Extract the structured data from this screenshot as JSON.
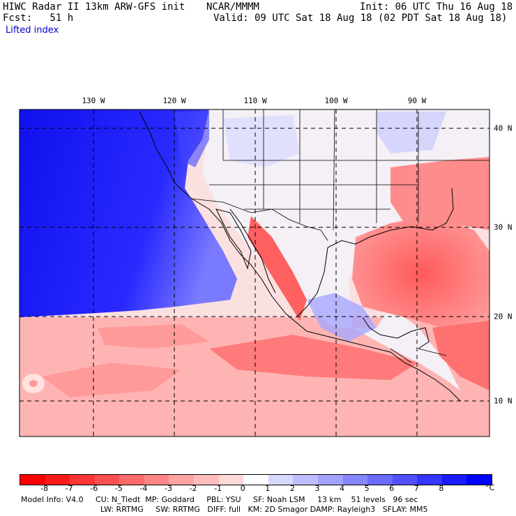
{
  "header": {
    "title": "HIWC Radar II 13km ARW-GFS init",
    "org": "NCAR/MMMM",
    "init": "Init: 06 UTC Thu 16 Aug 18",
    "fcst": "Fcst:   51 h",
    "valid": "Valid: 09 UTC Sat 18 Aug 18 (02 PDT Sat 18 Aug 18)",
    "field": "Lifted index"
  },
  "map": {
    "longitude_labels": [
      "130 W",
      "120 W",
      "110 W",
      "100 W",
      "90 W"
    ],
    "latitude_labels": [
      "40 N",
      "30 N",
      "20 N",
      "10 N"
    ]
  },
  "colorbar": {
    "ticks": [
      "-8",
      "-7",
      "-6",
      "-5",
      "-4",
      "-3",
      "-2",
      "-1",
      "0",
      "1",
      "2",
      "3",
      "4",
      "5",
      "6",
      "7",
      "8"
    ],
    "unit": "°C",
    "colors": [
      "#ff0000",
      "#ff1a1a",
      "#ff3535",
      "#ff5050",
      "#ff6b6b",
      "#ff8686",
      "#ffa2a2",
      "#ffbdbd",
      "#ffd8d8",
      "#ffffff",
      "#d8d8ff",
      "#bdbdff",
      "#a2a2ff",
      "#8686ff",
      "#6b6bff",
      "#5050ff",
      "#3535ff",
      "#1a1aff",
      "#0000ff"
    ]
  },
  "footer": {
    "line1": "Model Info: V4.0     CU: N_Tiedt  MP: Goddard     PBL: YSU     SF: Noah LSM     13 km    51 levels   96 sec",
    "line2": "LW: RRTMG     SW: RRTMG   DIFF: full   KM: 2D Smagor DAMP: Rayleigh3   SFLAY: MM5"
  }
}
